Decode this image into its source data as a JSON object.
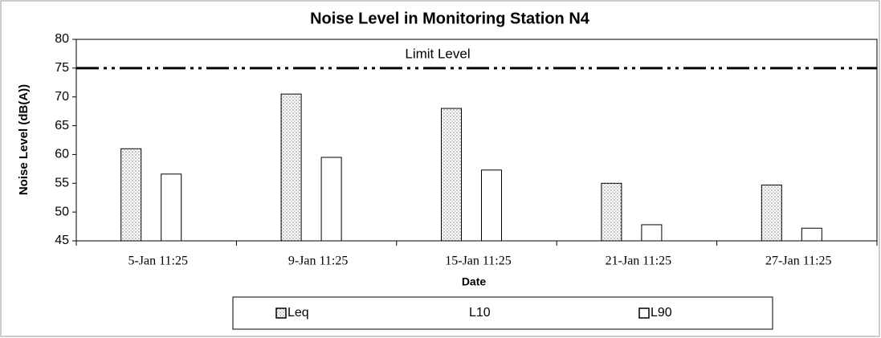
{
  "chart_data": {
    "type": "bar",
    "title": "Noise Level in Monitoring Station N4",
    "x_label": "Date",
    "y_label": "Noise Level (dB(A))",
    "categories": [
      "5-Jan 11:25",
      "9-Jan 11:25",
      "15-Jan 11:25",
      "21-Jan 11:25",
      "27-Jan 11:25"
    ],
    "series": [
      {
        "name": "Leq",
        "color": "#777777",
        "values": [
          61,
          70.5,
          68,
          55,
          54.7
        ]
      },
      {
        "name": "L10",
        "values": [
          null,
          null,
          null,
          null,
          null
        ]
      },
      {
        "name": "L90",
        "color": "#ffffff",
        "values": [
          56.6,
          59.5,
          57.3,
          47.8,
          47.2
        ]
      }
    ],
    "limit": {
      "label": "Limit Level",
      "value": 75
    },
    "ylim": [
      45,
      80
    ],
    "yticks": [
      45,
      50,
      55,
      60,
      65,
      70,
      75,
      80
    ],
    "legend": "bottom"
  }
}
